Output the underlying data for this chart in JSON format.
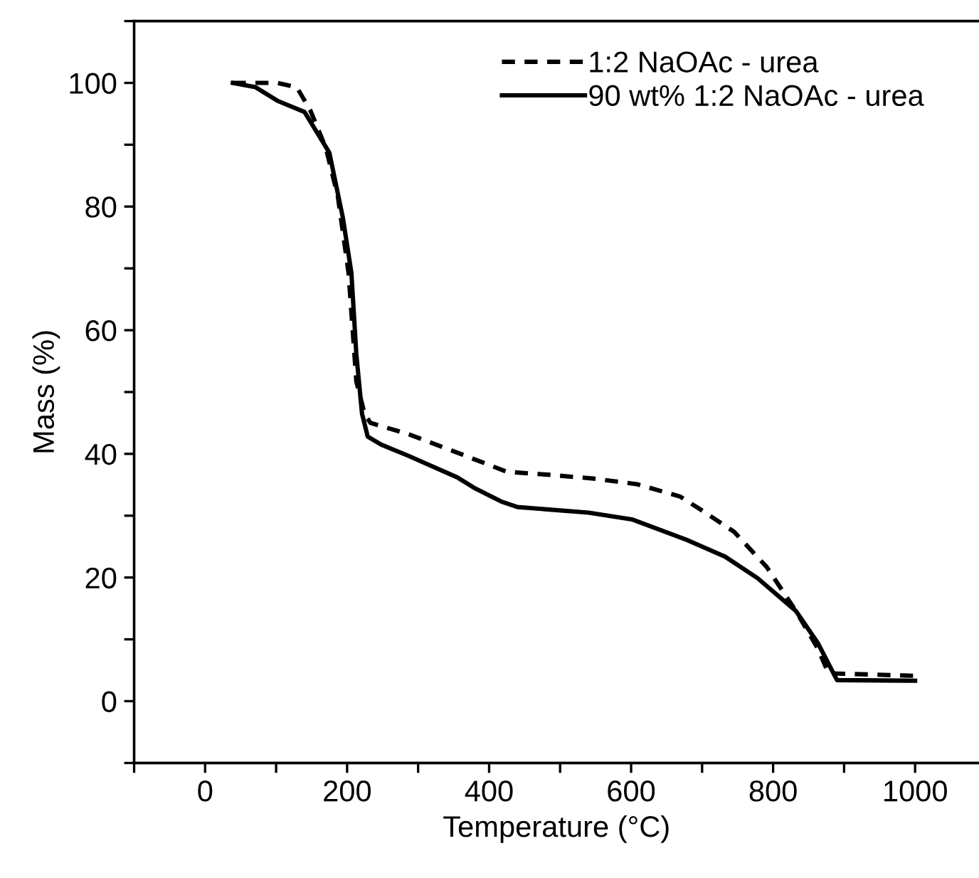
{
  "chart_data": {
    "type": "line",
    "xlabel": "Temperature (°C)",
    "ylabel": "Mass (%)",
    "xlim": [
      -100,
      1090
    ],
    "ylim": [
      -10,
      110
    ],
    "xticks": [
      {
        "value": -100,
        "label": null
      },
      0,
      {
        "value": 100,
        "label": null
      },
      200,
      {
        "value": 300,
        "label": null
      },
      400,
      {
        "value": 500,
        "label": null
      },
      600,
      {
        "value": 700,
        "label": null
      },
      800,
      {
        "value": 900,
        "label": null
      },
      1000
    ],
    "yticks": [
      {
        "value": -10,
        "label": null
      },
      0,
      {
        "value": 10,
        "label": null
      },
      20,
      {
        "value": 30,
        "label": null
      },
      40,
      {
        "value": 50,
        "label": null
      },
      60,
      {
        "value": 70,
        "label": null
      },
      80,
      {
        "value": 90,
        "label": null
      },
      100,
      {
        "value": 110,
        "label": null
      }
    ],
    "grid": false,
    "legend": "top right",
    "marker": "none",
    "series": [
      {
        "name": "1:2 NaOAc - urea",
        "color": "#000000",
        "line_style": "dashed",
        "x": [
          39,
          102,
          129,
          148,
          170,
          187,
          202,
          213,
          225,
          233,
          286,
          355,
          425,
          486,
          547,
          608,
          669,
          699,
          745,
          791,
          832,
          863,
          878,
          1000
        ],
        "values": [
          100,
          100,
          99.3,
          95.6,
          89.5,
          81.6,
          69.3,
          51.7,
          46.3,
          45.0,
          43.2,
          40.2,
          37.1,
          36.6,
          36.0,
          35.1,
          33.1,
          30.9,
          27.4,
          21.7,
          14.6,
          8.5,
          4.5,
          4.1
        ]
      },
      {
        "name": "90 wt% 1:2 NaOAc - urea",
        "color": "#000000",
        "line_style": "solid",
        "x": [
          39,
          71,
          102,
          140,
          175,
          194,
          206,
          213,
          221,
          229,
          248,
          286,
          355,
          379,
          417,
          440,
          540,
          601,
          678,
          732,
          778,
          832,
          863,
          890,
          1000
        ],
        "values": [
          100,
          99.3,
          97.1,
          95.3,
          88.7,
          78.2,
          69.3,
          56.1,
          46.5,
          42.8,
          41.5,
          39.7,
          36.2,
          34.5,
          32.3,
          31.4,
          30.5,
          29.4,
          26.1,
          23.4,
          19.9,
          14.6,
          9.4,
          3.4,
          3.3
        ]
      }
    ]
  }
}
